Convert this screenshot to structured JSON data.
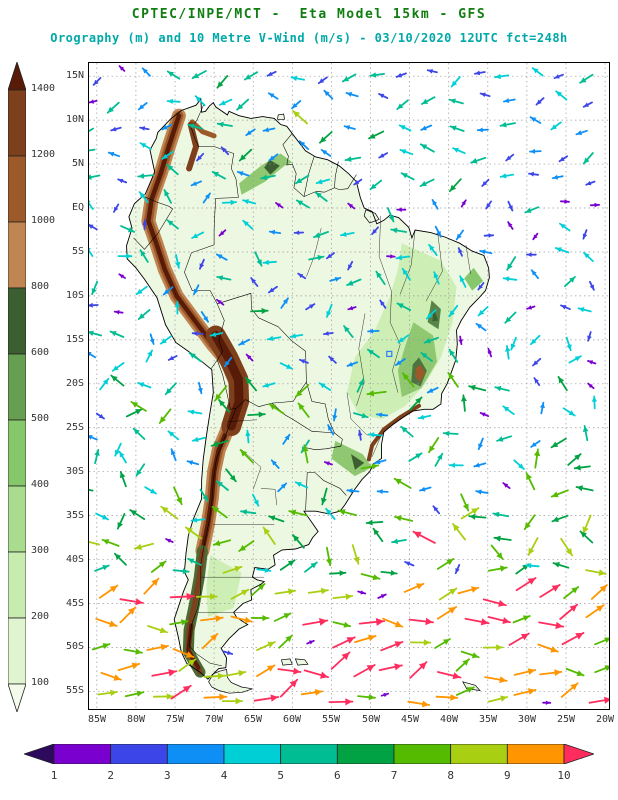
{
  "header": {
    "title_model": "CPTEC/INPE/MCT -  Eta Model 15km - GFS",
    "title_field": "Orography (m) and 10 Metre V-Wind (m/s) - 03/10/2020 12UTC fct=248h",
    "title_model_color": "#0f7d0f",
    "title_field_color": "#00a8a8"
  },
  "axes": {
    "lat_labels": [
      "15N",
      "10N",
      "5N",
      "EQ",
      "5S",
      "10S",
      "15S",
      "20S",
      "25S",
      "30S",
      "35S",
      "40S",
      "45S",
      "50S",
      "55S"
    ],
    "lat_values": [
      15,
      10,
      5,
      0,
      -5,
      -10,
      -15,
      -20,
      -25,
      -30,
      -35,
      -40,
      -45,
      -50,
      -55
    ],
    "lon_labels": [
      "85W",
      "80W",
      "75W",
      "70W",
      "65W",
      "60W",
      "55W",
      "50W",
      "45W",
      "40W",
      "35W",
      "30W",
      "25W",
      "20W"
    ],
    "lon_values": [
      -85,
      -80,
      -75,
      -70,
      -65,
      -60,
      -55,
      -50,
      -45,
      -40,
      -35,
      -30,
      -25,
      -20
    ],
    "tick_color": "#333333"
  },
  "orography_legend": {
    "unit": "m",
    "tick_values": [
      100,
      200,
      300,
      400,
      500,
      600,
      800,
      1000,
      1200,
      1400
    ],
    "colors_bottom_to_top": [
      "#f3fbea",
      "#e0f4cf",
      "#c8ecb0",
      "#a9dc8e",
      "#87c76b",
      "#679f52",
      "#3c5f31",
      "#c08552",
      "#9c5a2a",
      "#7d3f1c",
      "#571b07"
    ]
  },
  "wind_legend": {
    "unit": "m/s",
    "tick_values": [
      1,
      2,
      3,
      4,
      5,
      6,
      7,
      8,
      9,
      10
    ],
    "colors_low_to_high": [
      "#2d0a5e",
      "#7a00d0",
      "#3c46e8",
      "#0e8ff5",
      "#00cfd6",
      "#00bd93",
      "#00a244",
      "#55bb00",
      "#a8cf12",
      "#ff9500",
      "#ff2d5e"
    ]
  },
  "map_view": {
    "lon_min": -86,
    "lon_max": -19.5,
    "lat_min": -57,
    "lat_max": 16.5,
    "grid_step_deg": 5,
    "ocean_color": "#ffffff",
    "lowland_color": "#edf8e2",
    "grid_color": "#999999"
  },
  "chart_data": {
    "type": "heatmap",
    "title": "CPTEC/INPE/MCT -  Eta Model 15km - GFS",
    "subtitle": "Orography (m) and 10 Metre V-Wind (m/s) - 03/10/2020 12UTC fct=248h",
    "region": "South America lat/lon map",
    "x_ticks": [
      "85W",
      "80W",
      "75W",
      "70W",
      "65W",
      "60W",
      "55W",
      "50W",
      "45W",
      "40W",
      "35W",
      "30W",
      "25W",
      "20W"
    ],
    "y_ticks": [
      "15N",
      "10N",
      "5N",
      "EQ",
      "5S",
      "10S",
      "15S",
      "20S",
      "25S",
      "30S",
      "35S",
      "40S",
      "45S",
      "50S",
      "55S"
    ],
    "colorbars": [
      {
        "name": "Orography (m)",
        "orientation": "vertical-left",
        "ticks": [
          100,
          200,
          300,
          400,
          500,
          600,
          800,
          1000,
          1200,
          1400
        ]
      },
      {
        "name": "10 Metre V-Wind (m/s)",
        "orientation": "horizontal-bottom",
        "ticks": [
          1,
          2,
          3,
          4,
          5,
          6,
          7,
          8,
          9,
          10
        ]
      }
    ],
    "field_summary": "Colored wind vectors over orography shading; strongest vectors (8-10+ m/s, orange/red/magenta) south of 40S, moderate (3-7 m/s, cyan/green) over the tropics and North Atlantic trades, weak (1-2 m/s, purple/blue) scattered over the continent"
  }
}
